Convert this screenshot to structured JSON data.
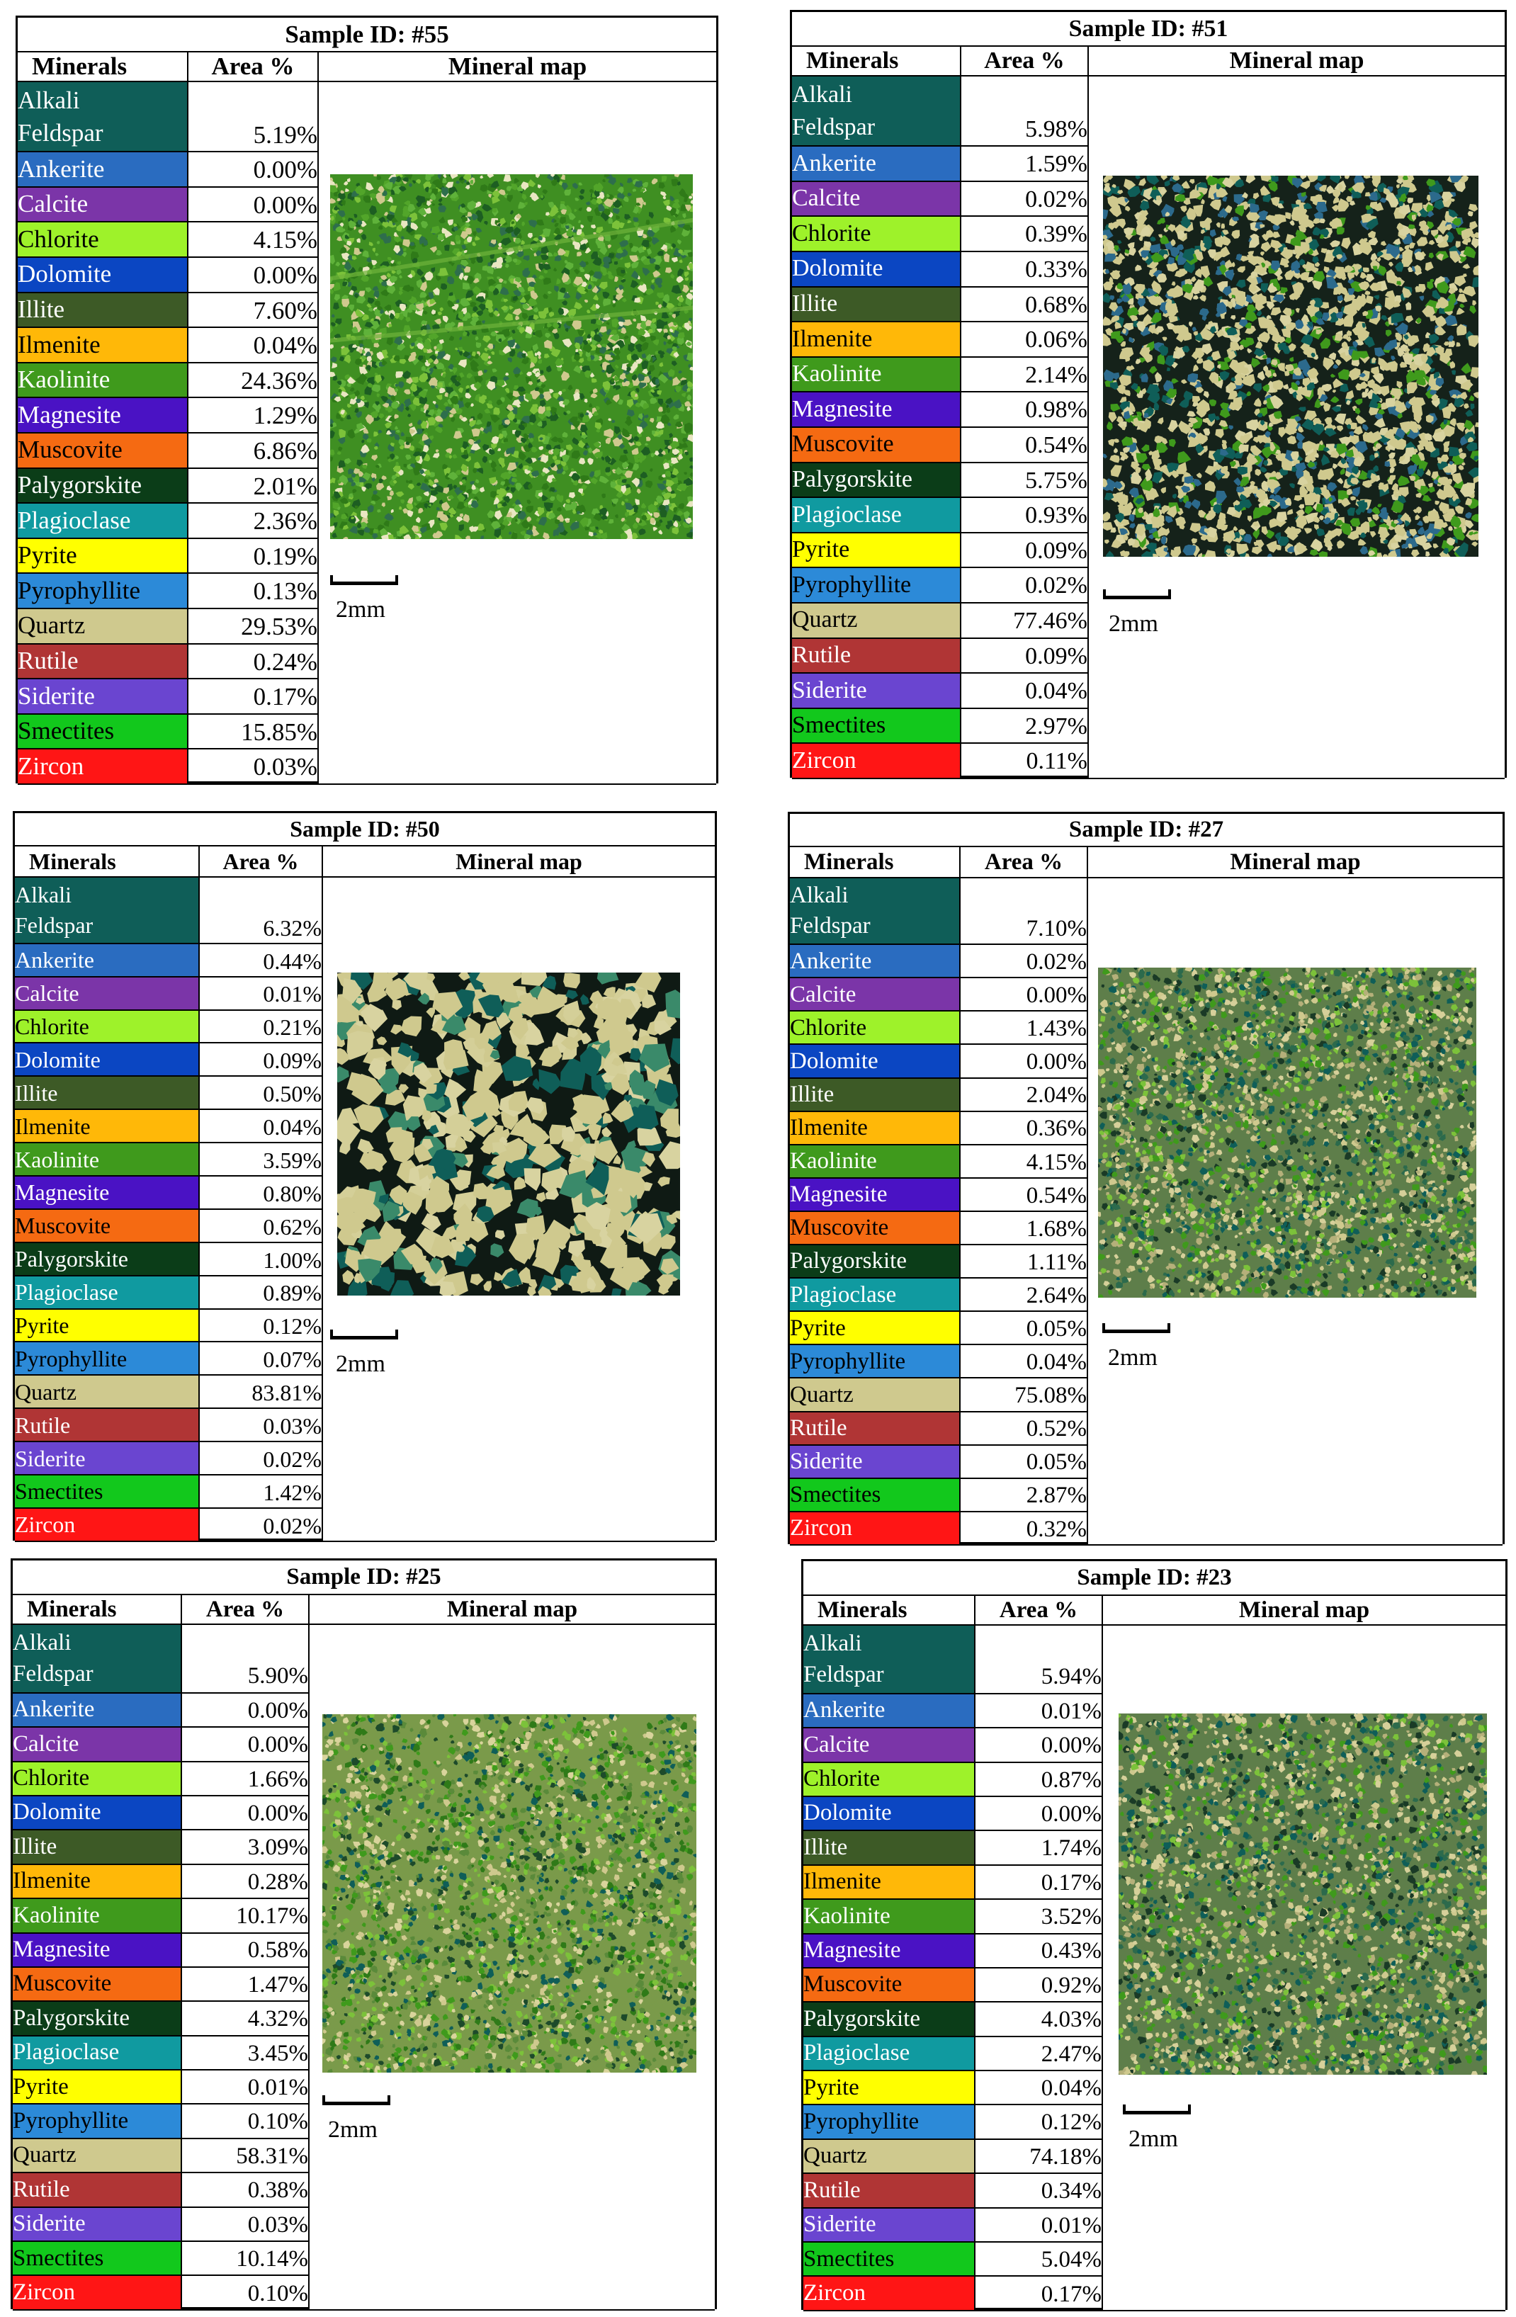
{
  "headers": {
    "minerals": "Minerals",
    "area": "Area %",
    "map": "Mineral map"
  },
  "scale_label": "2mm",
  "minerals": [
    {
      "name": "Alkali Feldspar",
      "color": "#0f5e58",
      "text": "light",
      "two_line": true
    },
    {
      "name": "Ankerite",
      "color": "#2a6cc0",
      "text": "light"
    },
    {
      "name": "Calcite",
      "color": "#7b35a8",
      "text": "light"
    },
    {
      "name": "Chlorite",
      "color": "#9ef22a",
      "text": "dark"
    },
    {
      "name": "Dolomite",
      "color": "#0b46c2",
      "text": "light"
    },
    {
      "name": "Illite",
      "color": "#3d5a26",
      "text": "light"
    },
    {
      "name": "Ilmenite",
      "color": "#ffb808",
      "text": "dark"
    },
    {
      "name": "Kaolinite",
      "color": "#3f9a1c",
      "text": "light"
    },
    {
      "name": "Magnesite",
      "color": "#4a12c4",
      "text": "light"
    },
    {
      "name": "Muscovite",
      "color": "#f56a12",
      "text": "dark"
    },
    {
      "name": "Palygorskite",
      "color": "#0b3d18",
      "text": "light"
    },
    {
      "name": "Plagioclase",
      "color": "#109aa0",
      "text": "light"
    },
    {
      "name": "Pyrite",
      "color": "#ffff00",
      "text": "dark"
    },
    {
      "name": "Pyrophyllite",
      "color": "#2c8ad8",
      "text": "dark"
    },
    {
      "name": "Quartz",
      "color": "#cfc98e",
      "text": "dark"
    },
    {
      "name": "Rutile",
      "color": "#b03535",
      "text": "light"
    },
    {
      "name": "Siderite",
      "color": "#6a45d0",
      "text": "light"
    },
    {
      "name": "Smectites",
      "color": "#12c81c",
      "text": "dark"
    },
    {
      "name": "Zircon",
      "color": "#ff1515",
      "text": "light"
    }
  ],
  "samples": [
    {
      "title": "Sample ID: #55",
      "map_style": "green-dense",
      "areas": [
        "5.19%",
        "0.00%",
        "0.00%",
        "4.15%",
        "0.00%",
        "7.60%",
        "0.04%",
        "24.36%",
        "1.29%",
        "6.86%",
        "2.01%",
        "2.36%",
        "0.19%",
        "0.13%",
        "29.53%",
        "0.24%",
        "0.17%",
        "15.85%",
        "0.03%"
      ]
    },
    {
      "title": "Sample ID: #51",
      "map_style": "quartz-grains",
      "areas": [
        "5.98%",
        "1.59%",
        "0.02%",
        "0.39%",
        "0.33%",
        "0.68%",
        "0.06%",
        "2.14%",
        "0.98%",
        "0.54%",
        "5.75%",
        "0.93%",
        "0.09%",
        "0.02%",
        "77.46%",
        "0.09%",
        "0.04%",
        "2.97%",
        "0.11%"
      ]
    },
    {
      "title": "Sample ID: #50",
      "map_style": "quartz-coarse",
      "areas": [
        "6.32%",
        "0.44%",
        "0.01%",
        "0.21%",
        "0.09%",
        "0.50%",
        "0.04%",
        "3.59%",
        "0.80%",
        "0.62%",
        "1.00%",
        "0.89%",
        "0.12%",
        "0.07%",
        "83.81%",
        "0.03%",
        "0.02%",
        "1.42%",
        "0.02%"
      ]
    },
    {
      "title": "Sample ID: #27",
      "map_style": "mixed-fine",
      "areas": [
        "7.10%",
        "0.02%",
        "0.00%",
        "1.43%",
        "0.00%",
        "2.04%",
        "0.36%",
        "4.15%",
        "0.54%",
        "1.68%",
        "1.11%",
        "2.64%",
        "0.05%",
        "0.04%",
        "75.08%",
        "0.52%",
        "0.05%",
        "2.87%",
        "0.32%"
      ]
    },
    {
      "title": "Sample ID: #25",
      "map_style": "mixed-green",
      "areas": [
        "5.90%",
        "0.00%",
        "0.00%",
        "1.66%",
        "0.00%",
        "3.09%",
        "0.28%",
        "10.17%",
        "0.58%",
        "1.47%",
        "4.32%",
        "3.45%",
        "0.01%",
        "0.10%",
        "58.31%",
        "0.38%",
        "0.03%",
        "10.14%",
        "0.10%"
      ]
    },
    {
      "title": "Sample ID: #23",
      "map_style": "mixed-fine",
      "areas": [
        "5.94%",
        "0.01%",
        "0.00%",
        "0.87%",
        "0.00%",
        "1.74%",
        "0.17%",
        "3.52%",
        "0.43%",
        "0.92%",
        "4.03%",
        "2.47%",
        "0.04%",
        "0.12%",
        "74.18%",
        "0.34%",
        "0.01%",
        "5.04%",
        "0.17%"
      ]
    }
  ]
}
